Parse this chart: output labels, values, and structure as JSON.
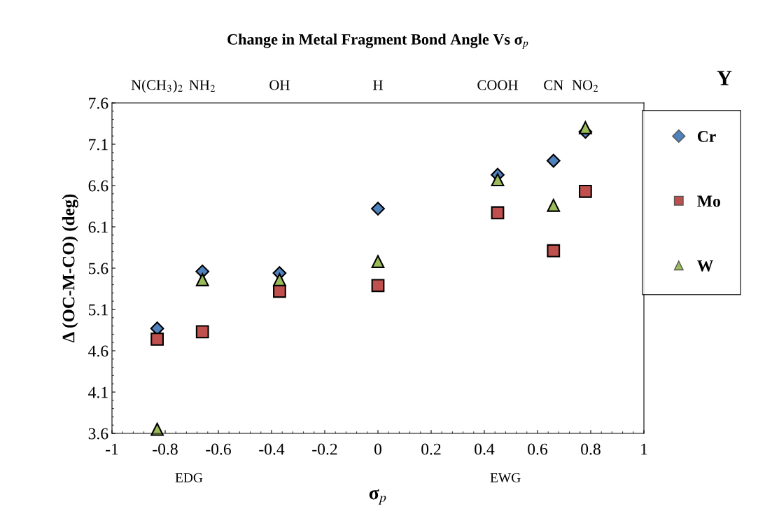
{
  "chart_data": {
    "type": "scatter",
    "title": "Change in Metal Fragment Bond Angle Vs σ$_{p}$",
    "xlabel": "σ$_{p}$",
    "ylabel": "Δ (OC-M-CO) (deg)",
    "legend_title": "Y",
    "x": [
      -0.83,
      -0.66,
      -0.37,
      0,
      0.45,
      0.66,
      0.78
    ],
    "series": [
      {
        "name": "Cr",
        "color": "#4f81bd",
        "marker": "diamond",
        "values": [
          4.87,
          5.56,
          5.54,
          6.32,
          6.73,
          6.9,
          7.25
        ]
      },
      {
        "name": "Mo",
        "color": "#c0504d",
        "marker": "square",
        "values": [
          4.74,
          4.83,
          5.32,
          5.39,
          6.27,
          5.81,
          6.53
        ]
      },
      {
        "name": "W",
        "color": "#9bbb59",
        "marker": "triangle",
        "values": [
          3.65,
          5.46,
          5.46,
          5.68,
          6.67,
          6.36,
          7.3
        ]
      }
    ],
    "xlim": [
      -1,
      1
    ],
    "xticks": [
      -1,
      -0.8,
      -0.6,
      -0.4,
      -0.2,
      0,
      0.2,
      0.4,
      0.6,
      0.8,
      1
    ],
    "ylim": [
      3.6,
      7.6
    ],
    "yticks": [
      3.6,
      4.1,
      4.6,
      5.1,
      5.6,
      6.1,
      6.6,
      7.1,
      7.6
    ],
    "annotations": [
      "EDG",
      "EWG",
      "N(CH$_{3}$)$_{2}$",
      "NH$_{2}$",
      "OH",
      "H",
      "COOH",
      "CN",
      "NO$_{2}$"
    ],
    "grid": false,
    "legend": "right"
  }
}
